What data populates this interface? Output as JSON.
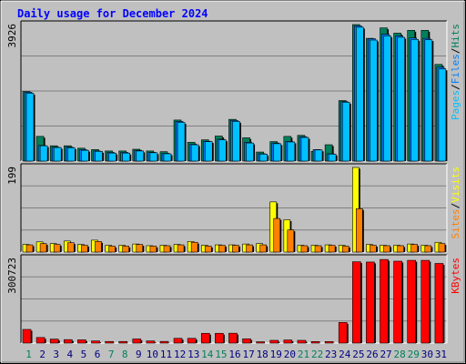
{
  "title": "Daily usage for December 2024",
  "colors": {
    "hits": "#00805C",
    "files": "#0080FF",
    "pages": "#00C0FF",
    "sites": "#FF8000",
    "visits": "#FFFF00",
    "kbytes": "#FF0000",
    "weekend_label": "#00805C",
    "weekday_label": "#000080",
    "title": "#0000FF"
  },
  "legend": {
    "top": [
      {
        "key": "pages",
        "label": "Pages"
      },
      {
        "key": "files",
        "label": "Files"
      },
      {
        "key": "hits",
        "label": "Hits"
      }
    ],
    "middle": [
      {
        "key": "sites",
        "label": "Sites"
      },
      {
        "key": "visits",
        "label": "Visits"
      }
    ],
    "bottom": [
      {
        "key": "kbytes",
        "label": "KBytes"
      }
    ],
    "separator": "/"
  },
  "chart_data": {
    "type": "bar",
    "title": "Daily usage for December 2024",
    "categories": [
      "1",
      "2",
      "3",
      "4",
      "5",
      "6",
      "7",
      "8",
      "9",
      "10",
      "11",
      "12",
      "13",
      "14",
      "15",
      "16",
      "17",
      "18",
      "19",
      "20",
      "21",
      "22",
      "23",
      "24",
      "25",
      "26",
      "27",
      "28",
      "29",
      "30",
      "31"
    ],
    "weekend_days": [
      "1",
      "7",
      "8",
      "14",
      "15",
      "21",
      "22",
      "28",
      "29"
    ],
    "panels": [
      {
        "name": "top",
        "ymax": 3926,
        "ymax_label": "3926",
        "series": [
          {
            "name": "Hits",
            "values": [
              2000,
              710,
              440,
              440,
              370,
              330,
              290,
              290,
              340,
              290,
              270,
              1180,
              540,
              610,
              720,
              1200,
              670,
              260,
              560,
              710,
              740,
              280,
              470,
              1740,
              3926,
              3530,
              3830,
              3680,
              3760,
              3760,
              2780
            ]
          },
          {
            "name": "Files",
            "values": [
              1980,
              450,
              400,
              400,
              330,
              290,
              250,
              250,
              310,
              250,
              220,
              1140,
              480,
              570,
              630,
              1170,
              540,
              210,
              520,
              560,
              700,
              330,
              210,
              1710,
              3890,
              3520,
              3650,
              3600,
              3540,
              3530,
              2700
            ]
          },
          {
            "name": "Pages",
            "values": [
              1950,
              440,
              390,
              380,
              310,
              280,
              230,
              230,
              290,
              240,
              210,
              1110,
              470,
              560,
              610,
              1140,
              520,
              200,
              500,
              550,
              680,
              320,
              200,
              1690,
              3850,
              3480,
              3600,
              3560,
              3500,
              3490,
              2650
            ]
          }
        ]
      },
      {
        "name": "middle",
        "ymax": 199,
        "ymax_label": "199",
        "series": [
          {
            "name": "Visits",
            "values": [
              18,
              24,
              20,
              26,
              18,
              28,
              16,
              16,
              19,
              15,
              16,
              18,
              25,
              16,
              17,
              17,
              19,
              20,
              118,
              76,
              16,
              16,
              17,
              16,
              199,
              18,
              16,
              16,
              19,
              16,
              23
            ]
          },
          {
            "name": "Sites",
            "values": [
              17,
              20,
              18,
              22,
              16,
              25,
              14,
              14,
              18,
              14,
              15,
              17,
              23,
              14,
              16,
              16,
              17,
              17,
              79,
              52,
              15,
              15,
              16,
              14,
              102,
              16,
              15,
              15,
              18,
              15,
              20
            ]
          }
        ]
      },
      {
        "name": "bottom",
        "ymax": 300723,
        "ymax_label": "300723",
        "series": [
          {
            "name": "KBytes",
            "values": [
              48500,
              19800,
              14100,
              12300,
              11500,
              7500,
              5700,
              5700,
              14600,
              7500,
              5900,
              16900,
              16900,
              34700,
              34700,
              35000,
              15200,
              4700,
              9700,
              11000,
              9700,
              5500,
              5500,
              73300,
              289000,
              288000,
              297000,
              291000,
              294000,
              294000,
              283000
            ]
          }
        ]
      }
    ],
    "grid": true,
    "legend": "right-vertical"
  }
}
